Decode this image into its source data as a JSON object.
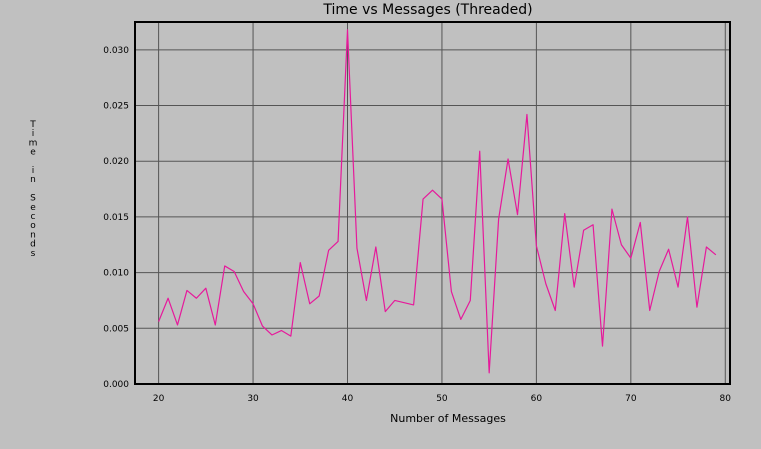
{
  "chart_data": {
    "type": "line",
    "title": "Time vs Messages (Threaded)",
    "xlabel": "Number of Messages",
    "ylabel": "Time in Seconds",
    "xlim": [
      17.5,
      80.5
    ],
    "ylim": [
      0,
      0.0325
    ],
    "xticks": [
      20,
      30,
      40,
      50,
      60,
      70,
      80
    ],
    "xtick_labels": [
      "20",
      "30",
      "40",
      "50",
      "60",
      "70",
      "80"
    ],
    "yticks": [
      0,
      0.005,
      0.01,
      0.015,
      0.02,
      0.025,
      0.03
    ],
    "ytick_labels": [
      "0.000",
      "0.005",
      "0.010",
      "0.015",
      "0.020",
      "0.025",
      "0.030"
    ],
    "grid": true,
    "series": [
      {
        "color": "#e6199b",
        "x": [
          20,
          21,
          22,
          23,
          24,
          25,
          26,
          27,
          28,
          29,
          30,
          31,
          32,
          33,
          34,
          35,
          36,
          37,
          38,
          39,
          40,
          41,
          42,
          43,
          44,
          45,
          46,
          47,
          48,
          49,
          50,
          51,
          52,
          53,
          54,
          55,
          56,
          57,
          58,
          59,
          60,
          61,
          62,
          63,
          64,
          65,
          66,
          67,
          68,
          69,
          70,
          71,
          72,
          73,
          74,
          75,
          76,
          77,
          78,
          79
        ],
        "y": [
          0.0056,
          0.0077,
          0.0053,
          0.0084,
          0.0077,
          0.0086,
          0.0053,
          0.0106,
          0.0101,
          0.0083,
          0.0072,
          0.0052,
          0.0044,
          0.0048,
          0.0043,
          0.0109,
          0.0072,
          0.0079,
          0.012,
          0.0128,
          0.0318,
          0.0122,
          0.0075,
          0.0123,
          0.0065,
          0.0075,
          0.0073,
          0.0071,
          0.0166,
          0.0174,
          0.0166,
          0.0083,
          0.0058,
          0.0075,
          0.0209,
          0.001,
          0.0148,
          0.0202,
          0.0152,
          0.0242,
          0.0124,
          0.009,
          0.0066,
          0.0153,
          0.0087,
          0.0138,
          0.0143,
          0.0034,
          0.0157,
          0.0125,
          0.0113,
          0.0145,
          0.0066,
          0.0101,
          0.0121,
          0.0087,
          0.015,
          0.0069,
          0.0123,
          0.0116
        ]
      }
    ]
  }
}
